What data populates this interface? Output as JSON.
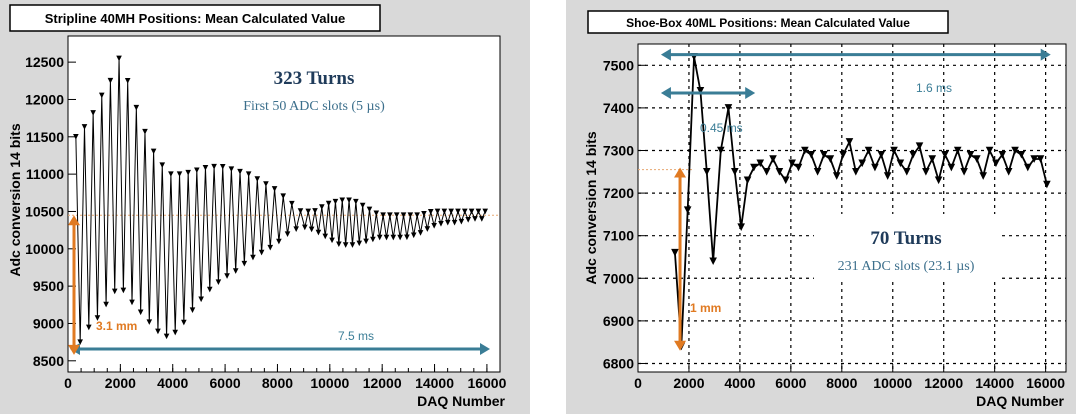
{
  "colors": {
    "teal": "#3a7d96",
    "orange": "#e07a22",
    "panel": "#d9d9d9",
    "box_title": "#1f3b5a",
    "box_sub": "#3c6f8c"
  },
  "chart_data": [
    {
      "type": "line",
      "title": "Stripline 40MH Positions: Mean Calculated Value",
      "xlabel": "DAQ Number",
      "ylabel": "Adc conversion 14 bits",
      "xlim": [
        0,
        16500
      ],
      "ylim": [
        8350,
        12850
      ],
      "xticks": [
        0,
        2000,
        4000,
        6000,
        8000,
        10000,
        12000,
        14000,
        16000
      ],
      "yticks": [
        8500,
        9000,
        9500,
        10000,
        10500,
        11000,
        11500,
        12000,
        12500
      ],
      "grid": false,
      "marker": "triangle-down",
      "series": [
        {
          "envelope_upper": [
            [
              300,
              11500
            ],
            [
              800,
              11700
            ],
            [
              1200,
              12000
            ],
            [
              1700,
              12300
            ],
            [
              2000,
              12600
            ],
            [
              2400,
              12100
            ],
            [
              2900,
              11600
            ],
            [
              3400,
              11200
            ],
            [
              3900,
              11000
            ],
            [
              4400,
              11000
            ],
            [
              4900,
              11050
            ],
            [
              5400,
              11100
            ],
            [
              5900,
              11100
            ],
            [
              6400,
              11050
            ],
            [
              6900,
              11000
            ],
            [
              7400,
              10900
            ],
            [
              7900,
              10800
            ],
            [
              8400,
              10650
            ],
            [
              8900,
              10500
            ],
            [
              9400,
              10500
            ],
            [
              9900,
              10600
            ],
            [
              10400,
              10650
            ],
            [
              10900,
              10650
            ],
            [
              11400,
              10550
            ],
            [
              11900,
              10450
            ],
            [
              12400,
              10450
            ],
            [
              12900,
              10450
            ],
            [
              13400,
              10450
            ],
            [
              13900,
              10500
            ],
            [
              14400,
              10500
            ],
            [
              14900,
              10500
            ],
            [
              15400,
              10500
            ],
            [
              16000,
              10500
            ]
          ],
          "envelope_lower": [
            [
              300,
              8650
            ],
            [
              800,
              8950
            ],
            [
              1200,
              9100
            ],
            [
              1700,
              9400
            ],
            [
              2000,
              9500
            ],
            [
              2400,
              9300
            ],
            [
              2900,
              9100
            ],
            [
              3400,
              8900
            ],
            [
              3900,
              8800
            ],
            [
              4400,
              9000
            ],
            [
              4900,
              9250
            ],
            [
              5400,
              9450
            ],
            [
              5900,
              9600
            ],
            [
              6400,
              9700
            ],
            [
              6900,
              9850
            ],
            [
              7400,
              9950
            ],
            [
              7900,
              10050
            ],
            [
              8400,
              10200
            ],
            [
              8900,
              10300
            ],
            [
              9400,
              10250
            ],
            [
              9900,
              10150
            ],
            [
              10400,
              10050
            ],
            [
              10900,
              10050
            ],
            [
              11400,
              10100
            ],
            [
              11900,
              10150
            ],
            [
              12400,
              10150
            ],
            [
              12900,
              10150
            ],
            [
              13400,
              10200
            ],
            [
              13900,
              10300
            ],
            [
              14400,
              10350
            ],
            [
              14900,
              10350
            ],
            [
              15400,
              10400
            ],
            [
              16000,
              10400
            ]
          ]
        }
      ],
      "annotations": {
        "box_title": "323 Turns",
        "box_subtitle": "First 50 ADC slots (5 µs)",
        "vertical_label": "3.1 mm",
        "horizontal_label": "7.5 ms"
      }
    },
    {
      "type": "line",
      "title": "Shoe-Box 40ML Positions: Mean Calculated Value",
      "xlabel": "DAQ Number",
      "ylabel": "Adc conversion 14 bits",
      "xlim": [
        0,
        16800
      ],
      "ylim": [
        6780,
        7550
      ],
      "xticks": [
        0,
        2000,
        4000,
        6000,
        8000,
        10000,
        12000,
        14000,
        16000
      ],
      "yticks": [
        6800,
        6900,
        7000,
        7100,
        7200,
        7300,
        7400,
        7500
      ],
      "grid": true,
      "marker": "triangle-down",
      "series": [
        {
          "points": [
            [
              1450,
              7060
            ],
            [
              1700,
              6840
            ],
            [
              1950,
              7160
            ],
            [
              2200,
              7520
            ],
            [
              2450,
              7440
            ],
            [
              2700,
              7250
            ],
            [
              2950,
              7040
            ],
            [
              3250,
              7300
            ],
            [
              3550,
              7400
            ],
            [
              3800,
              7250
            ],
            [
              4050,
              7120
            ],
            [
              4300,
              7230
            ],
            [
              4550,
              7260
            ],
            [
              4800,
              7270
            ],
            [
              5050,
              7250
            ],
            [
              5300,
              7280
            ],
            [
              5550,
              7250
            ],
            [
              5800,
              7230
            ],
            [
              6050,
              7270
            ],
            [
              6300,
              7260
            ],
            [
              6550,
              7300
            ],
            [
              6800,
              7290
            ],
            [
              7050,
              7250
            ],
            [
              7300,
              7290
            ],
            [
              7550,
              7280
            ],
            [
              7800,
              7240
            ],
            [
              8050,
              7290
            ],
            [
              8300,
              7320
            ],
            [
              8550,
              7250
            ],
            [
              8800,
              7270
            ],
            [
              9050,
              7300
            ],
            [
              9300,
              7260
            ],
            [
              9550,
              7290
            ],
            [
              9800,
              7240
            ],
            [
              10050,
              7300
            ],
            [
              10300,
              7270
            ],
            [
              10550,
              7250
            ],
            [
              10800,
              7290
            ],
            [
              11050,
              7310
            ],
            [
              11300,
              7250
            ],
            [
              11550,
              7280
            ],
            [
              11800,
              7230
            ],
            [
              12050,
              7290
            ],
            [
              12300,
              7260
            ],
            [
              12550,
              7300
            ],
            [
              12800,
              7250
            ],
            [
              13050,
              7290
            ],
            [
              13300,
              7280
            ],
            [
              13550,
              7240
            ],
            [
              13800,
              7300
            ],
            [
              14050,
              7270
            ],
            [
              14300,
              7290
            ],
            [
              14550,
              7250
            ],
            [
              14800,
              7300
            ],
            [
              15050,
              7290
            ],
            [
              15300,
              7260
            ],
            [
              15550,
              7280
            ],
            [
              15800,
              7280
            ],
            [
              16050,
              7220
            ]
          ]
        }
      ],
      "annotations": {
        "box_title": "70 Turns",
        "box_subtitle": "231 ADC slots (23.1 µs)",
        "vertical_label": "1 mm",
        "horizontal_label_1": "1.6 ms",
        "horizontal_label_2": "0.45 ms"
      }
    }
  ]
}
